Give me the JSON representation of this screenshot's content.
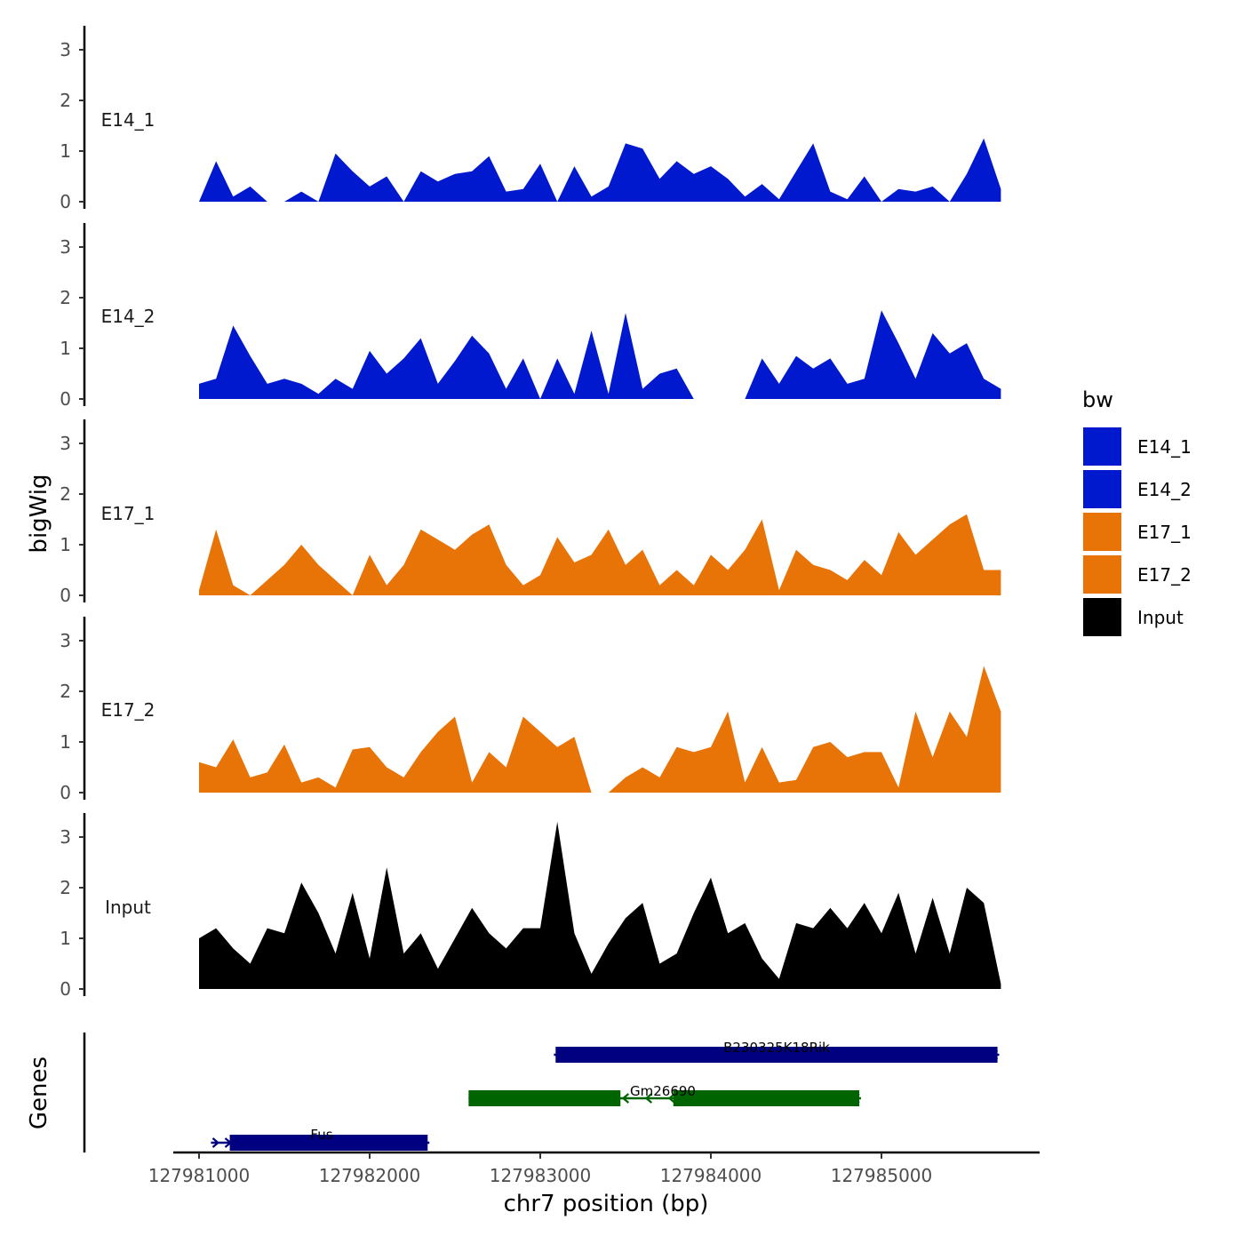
{
  "chart_data": {
    "type": "area",
    "title": "",
    "ylabel": "bigWig",
    "xlabel": "chr7 position (bp)",
    "ylim": [
      0,
      3.4
    ],
    "y_ticks": [
      0,
      1,
      2,
      3
    ],
    "xlim": [
      127980800,
      127985920
    ],
    "x_ticks": [
      127981000,
      127982000,
      127983000,
      127984000,
      127985000
    ],
    "x_tick_labels": [
      "127981000",
      "127982000",
      "127983000",
      "127984000",
      "127985000"
    ],
    "legend": {
      "title": "bw",
      "position": "right",
      "items": [
        {
          "label": "E14_1",
          "color": "#0019cf"
        },
        {
          "label": "E14_2",
          "color": "#0019cf"
        },
        {
          "label": "E17_1",
          "color": "#e87407"
        },
        {
          "label": "E17_2",
          "color": "#e87407"
        },
        {
          "label": "Input",
          "color": "#000000"
        }
      ]
    },
    "series": [
      {
        "name": "E14_1",
        "color": "#0019cf",
        "x": [
          127981000,
          127981100,
          127981200,
          127981300,
          127981400,
          127981500,
          127981600,
          127981700,
          127981800,
          127981900,
          127982000,
          127982100,
          127982200,
          127982300,
          127982400,
          127982500,
          127982600,
          127982700,
          127982800,
          127982900,
          127983000,
          127983100,
          127983200,
          127983300,
          127983400,
          127983500,
          127983600,
          127983700,
          127983800,
          127983900,
          127984000,
          127984100,
          127984200,
          127984300,
          127984400,
          127984500,
          127984600,
          127984700,
          127984800,
          127984900,
          127985000,
          127985100,
          127985200,
          127985300,
          127985400,
          127985500,
          127985600,
          127985700
        ],
        "values": [
          0,
          0.8,
          0.1,
          0.3,
          0,
          0,
          0.2,
          0,
          0.95,
          0.6,
          0.3,
          0.5,
          0,
          0.6,
          0.4,
          0.55,
          0.6,
          0.9,
          0.2,
          0.25,
          0.75,
          0,
          0.7,
          0.1,
          0.3,
          1.15,
          1.05,
          0.45,
          0.8,
          0.55,
          0.7,
          0.45,
          0.1,
          0.35,
          0.05,
          0.6,
          1.15,
          0.2,
          0.05,
          0.5,
          0,
          0.25,
          0.2,
          0.3,
          0,
          0.55,
          1.25,
          0.25
        ]
      },
      {
        "name": "E14_2",
        "color": "#0019cf",
        "x": [
          127981000,
          127981100,
          127981200,
          127981300,
          127981400,
          127981500,
          127981600,
          127981700,
          127981800,
          127981900,
          127982000,
          127982100,
          127982200,
          127982300,
          127982400,
          127982500,
          127982600,
          127982700,
          127982800,
          127982900,
          127983000,
          127983100,
          127983200,
          127983300,
          127983400,
          127983500,
          127983600,
          127983700,
          127983800,
          127983900,
          127984000,
          127984100,
          127984200,
          127984300,
          127984400,
          127984500,
          127984600,
          127984700,
          127984800,
          127984900,
          127985000,
          127985100,
          127985200,
          127985300,
          127985400,
          127985500,
          127985600,
          127985700
        ],
        "values": [
          0.3,
          0.4,
          1.45,
          0.85,
          0.3,
          0.4,
          0.3,
          0.1,
          0.4,
          0.2,
          0.95,
          0.5,
          0.8,
          1.2,
          0.3,
          0.75,
          1.25,
          0.9,
          0.2,
          0.8,
          0,
          0.8,
          0.1,
          1.35,
          0.1,
          1.7,
          0.2,
          0.5,
          0.6,
          0,
          0,
          0,
          0,
          0.8,
          0.3,
          0.85,
          0.6,
          0.8,
          0.3,
          0.4,
          1.75,
          1.1,
          0.4,
          1.3,
          0.9,
          1.1,
          0.4,
          0.2
        ]
      },
      {
        "name": "E17_1",
        "color": "#e87407",
        "x": [
          127981000,
          127981100,
          127981200,
          127981300,
          127981400,
          127981500,
          127981600,
          127981700,
          127981800,
          127981900,
          127982000,
          127982100,
          127982200,
          127982300,
          127982400,
          127982500,
          127982600,
          127982700,
          127982800,
          127982900,
          127983000,
          127983100,
          127983200,
          127983300,
          127983400,
          127983500,
          127983600,
          127983700,
          127983800,
          127983900,
          127984000,
          127984100,
          127984200,
          127984300,
          127984400,
          127984500,
          127984600,
          127984700,
          127984800,
          127984900,
          127985000,
          127985100,
          127985200,
          127985300,
          127985400,
          127985500,
          127985600,
          127985700
        ],
        "values": [
          0.1,
          1.3,
          0.2,
          0,
          0.3,
          0.6,
          1,
          0.6,
          0.3,
          0,
          0.8,
          0.2,
          0.6,
          1.3,
          1.1,
          0.9,
          1.2,
          1.4,
          0.6,
          0.2,
          0.4,
          1.15,
          0.65,
          0.8,
          1.3,
          0.6,
          0.9,
          0.2,
          0.5,
          0.2,
          0.8,
          0.5,
          0.9,
          1.5,
          0.1,
          0.9,
          0.6,
          0.5,
          0.3,
          0.7,
          0.4,
          1.25,
          0.8,
          1.1,
          1.4,
          1.6,
          0.5,
          0.5
        ]
      },
      {
        "name": "E17_2",
        "color": "#e87407",
        "x": [
          127981000,
          127981100,
          127981200,
          127981300,
          127981400,
          127981500,
          127981600,
          127981700,
          127981800,
          127981900,
          127982000,
          127982100,
          127982200,
          127982300,
          127982400,
          127982500,
          127982600,
          127982700,
          127982800,
          127982900,
          127983000,
          127983100,
          127983200,
          127983300,
          127983400,
          127983500,
          127983600,
          127983700,
          127983800,
          127983900,
          127984000,
          127984100,
          127984200,
          127984300,
          127984400,
          127984500,
          127984600,
          127984700,
          127984800,
          127984900,
          127985000,
          127985100,
          127985200,
          127985300,
          127985400,
          127985500,
          127985600,
          127985700
        ],
        "values": [
          0.6,
          0.5,
          1.05,
          0.3,
          0.4,
          0.95,
          0.2,
          0.3,
          0.1,
          0.85,
          0.9,
          0.5,
          0.3,
          0.8,
          1.2,
          1.5,
          0.2,
          0.8,
          0.5,
          1.5,
          1.2,
          0.9,
          1.1,
          0,
          0,
          0.3,
          0.5,
          0.3,
          0.9,
          0.8,
          0.9,
          1.6,
          0.2,
          0.9,
          0.2,
          0.25,
          0.9,
          1,
          0.7,
          0.8,
          0.8,
          0.1,
          1.6,
          0.7,
          1.6,
          1.1,
          2.5,
          1.6
        ]
      },
      {
        "name": "Input",
        "color": "#000000",
        "x": [
          127981000,
          127981100,
          127981200,
          127981300,
          127981400,
          127981500,
          127981600,
          127981700,
          127981800,
          127981900,
          127982000,
          127982100,
          127982200,
          127982300,
          127982400,
          127982500,
          127982600,
          127982700,
          127982800,
          127982900,
          127983000,
          127983100,
          127983200,
          127983300,
          127983400,
          127983500,
          127983600,
          127983700,
          127983800,
          127983900,
          127984000,
          127984100,
          127984200,
          127984300,
          127984400,
          127984500,
          127984600,
          127984700,
          127984800,
          127984900,
          127985000,
          127985100,
          127985200,
          127985300,
          127985400,
          127985500,
          127985600,
          127985700
        ],
        "values": [
          1,
          1.2,
          0.8,
          0.5,
          1.2,
          1.1,
          2.1,
          1.5,
          0.7,
          1.9,
          0.6,
          2.4,
          0.7,
          1.1,
          0.4,
          1.0,
          1.6,
          1.1,
          0.8,
          1.2,
          1.2,
          3.3,
          1.1,
          0.3,
          0.9,
          1.4,
          1.7,
          0.5,
          0.7,
          1.5,
          2.2,
          1.1,
          1.3,
          0.6,
          0.2,
          1.3,
          1.2,
          1.6,
          1.2,
          1.7,
          1.1,
          1.9,
          0.7,
          1.8,
          0.7,
          2.0,
          1.7,
          0.1
        ]
      }
    ],
    "genes": [
      {
        "name": "B230325K18Rik",
        "start": 127983080,
        "end": 127985690,
        "strand": "-",
        "color": "#000080",
        "row": 0,
        "exons": [
          [
            127983090,
            127985680
          ]
        ]
      },
      {
        "name": "Gm26690",
        "start": 127982580,
        "end": 127984880,
        "strand": "-",
        "color": "#006400",
        "row": 1,
        "exons": [
          [
            127982580,
            127983470
          ],
          [
            127983780,
            127984870
          ]
        ]
      },
      {
        "name": "Fus",
        "start": 127981070,
        "end": 127982350,
        "strand": "+",
        "color": "#000080",
        "row": 2,
        "exons": [
          [
            127981180,
            127982340
          ]
        ]
      }
    ],
    "gene_panel_label": "Genes"
  }
}
